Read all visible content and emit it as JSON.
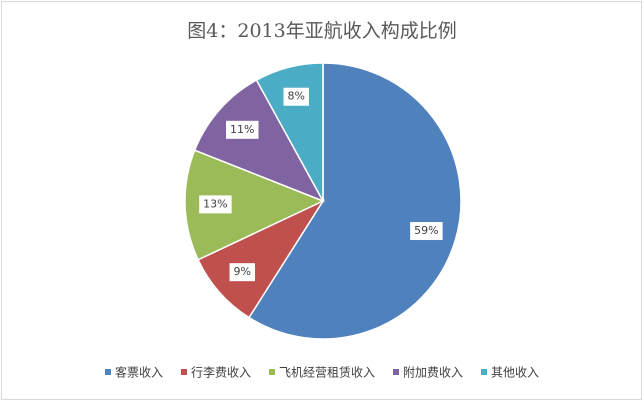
{
  "chart_data": {
    "type": "pie",
    "title": "图4：2013年亚航收入构成比例",
    "categories": [
      "客票收入",
      "行李费收入",
      "飞机经营租赁收入",
      "附加费收入",
      "其他收入"
    ],
    "values": [
      59,
      9,
      13,
      11,
      8
    ],
    "value_labels": [
      "59%",
      "9%",
      "13%",
      "11%",
      "8%"
    ],
    "colors": [
      "#4f81bd",
      "#c0504d",
      "#9bbb59",
      "#8064a2",
      "#4bacc6"
    ],
    "legend": "bottom"
  }
}
